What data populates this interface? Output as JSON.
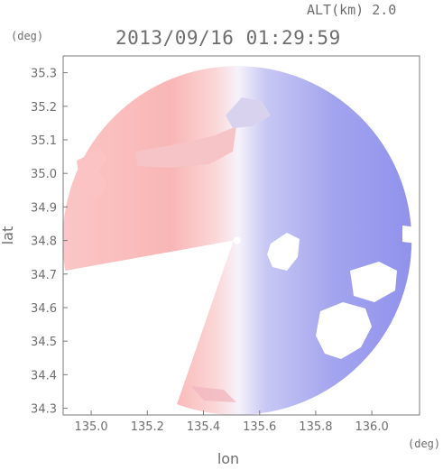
{
  "header": {
    "altitude_label": "ALT(km) 2.0",
    "timestamp": "2013/09/16 01:29:59"
  },
  "chart_data": {
    "type": "heatmap",
    "title": "2013/09/16 01:29:59",
    "xlabel": "lon",
    "ylabel": "lat",
    "x_unit": "(deg)",
    "y_unit": "(deg)",
    "xlim": [
      134.9,
      136.17
    ],
    "ylim": [
      34.28,
      35.35
    ],
    "x_ticks": [
      135.0,
      135.2,
      135.4,
      135.6,
      135.8,
      136.0
    ],
    "x_tick_labels": [
      "135.0",
      "135.2",
      "135.4",
      "135.6",
      "135.8",
      "136.0"
    ],
    "y_ticks": [
      34.3,
      34.4,
      34.5,
      34.6,
      34.7,
      34.8,
      34.9,
      35.0,
      35.1,
      35.2,
      35.3
    ],
    "y_tick_labels": [
      "34.3",
      "34.4",
      "34.5",
      "34.6",
      "34.7",
      "34.8",
      "34.9",
      "35.0",
      "35.1",
      "35.2",
      "35.3"
    ],
    "radar_center": [
      135.52,
      34.8
    ],
    "radar_range_deg": 0.52,
    "grid": false,
    "colors": {
      "approaching": "#8a8cf0",
      "receding": "#f7a6a6",
      "neutral": "#f4f2fb",
      "axis": "#7a7a7a"
    }
  }
}
